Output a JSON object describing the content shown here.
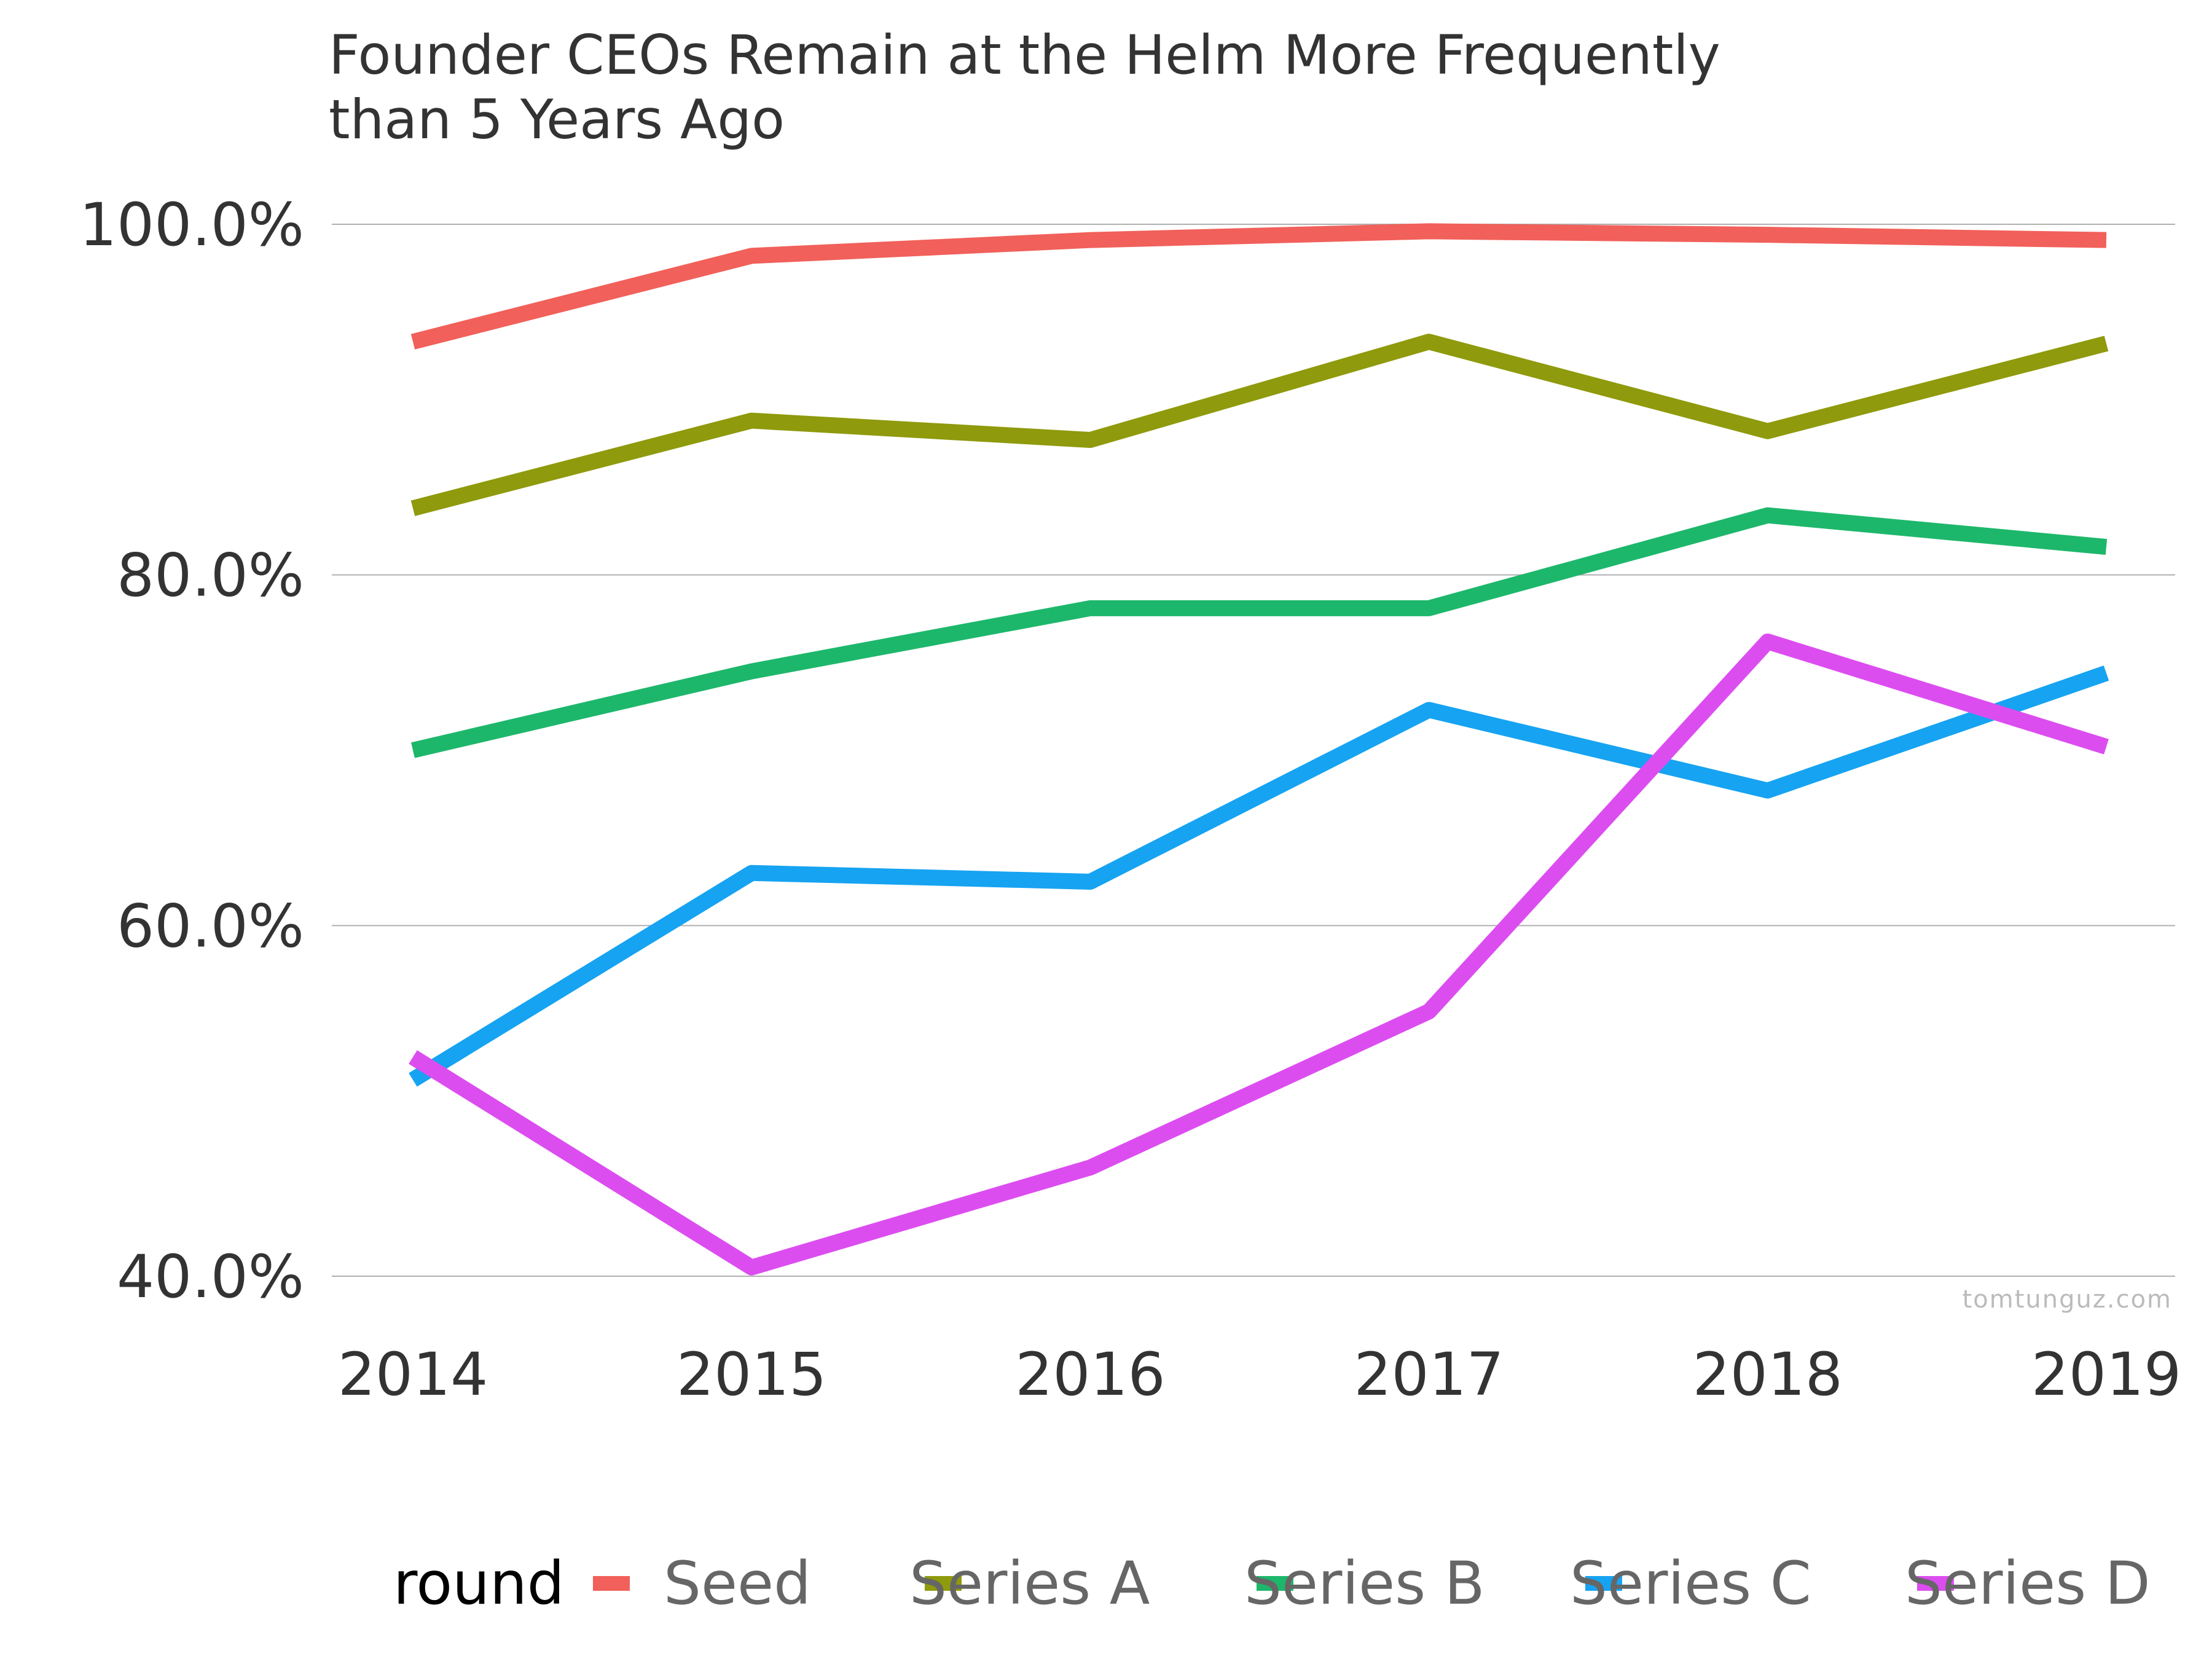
{
  "chart_data": {
    "type": "line",
    "title_lines": [
      "Founder CEOs Remain at the Helm More Frequently",
      "than 5 Years Ago"
    ],
    "xlabel": "",
    "ylabel": "",
    "x": [
      "2014",
      "2015",
      "2016",
      "2017",
      "2018",
      "2019"
    ],
    "ylim": [
      40,
      100
    ],
    "yticks": [
      40,
      60,
      80,
      100
    ],
    "ytick_labels": [
      "40.0%",
      "60.0%",
      "80.0%",
      "100.0%"
    ],
    "grid": "horizontal",
    "legend": {
      "title": "round",
      "position": "bottom"
    },
    "series": [
      {
        "name": "Seed",
        "color": "#f1605a",
        "values": [
          93.3,
          98.2,
          99.1,
          99.6,
          99.4,
          99.1
        ]
      },
      {
        "name": "Series A",
        "color": "#8f9a0c",
        "values": [
          83.8,
          88.8,
          87.7,
          93.3,
          88.2,
          93.2
        ]
      },
      {
        "name": "Series B",
        "color": "#1db76b",
        "values": [
          70.0,
          74.5,
          78.1,
          78.1,
          83.4,
          81.6
        ]
      },
      {
        "name": "Series C",
        "color": "#16a3f1",
        "values": [
          51.2,
          63.0,
          62.5,
          72.3,
          67.7,
          74.4
        ]
      },
      {
        "name": "Series D",
        "color": "#dc4df0",
        "values": [
          52.5,
          40.5,
          46.2,
          55.1,
          76.2,
          70.2
        ]
      }
    ],
    "watermark": "tomtunguz.com"
  }
}
